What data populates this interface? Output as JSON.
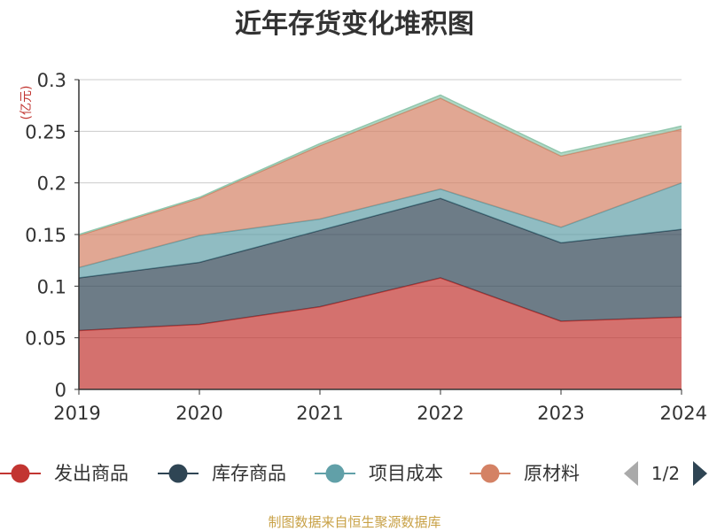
{
  "chart_data": {
    "type": "area",
    "stacked": true,
    "title": "近年存货变化堆积图",
    "ylabel": "(亿元)",
    "x": [
      "2019",
      "2020",
      "2021",
      "2022",
      "2023",
      "2024"
    ],
    "ylim": [
      0,
      0.3
    ],
    "yticks": [
      "0",
      "0.05",
      "0.1",
      "0.15",
      "0.2",
      "0.25",
      "0.3"
    ],
    "grid": true,
    "legend_position": "bottom",
    "series": [
      {
        "name": "发出商品",
        "color": "#c23531",
        "values": [
          0.057,
          0.063,
          0.08,
          0.108,
          0.066,
          0.07
        ]
      },
      {
        "name": "库存商品",
        "color": "#2f4554",
        "values": [
          0.051,
          0.06,
          0.074,
          0.077,
          0.076,
          0.085
        ]
      },
      {
        "name": "项目成本",
        "color": "#61a0a8",
        "values": [
          0.01,
          0.026,
          0.011,
          0.009,
          0.015,
          0.045
        ]
      },
      {
        "name": "原材料",
        "color": "#d48265",
        "values": [
          0.031,
          0.036,
          0.071,
          0.088,
          0.069,
          0.052
        ]
      },
      {
        "name": "",
        "color": "#91c7ae",
        "values": [
          0.001,
          0.001,
          0.002,
          0.003,
          0.003,
          0.003
        ]
      }
    ],
    "legend_page": "1/2",
    "source": "制图数据来自恒生聚源数据库"
  }
}
